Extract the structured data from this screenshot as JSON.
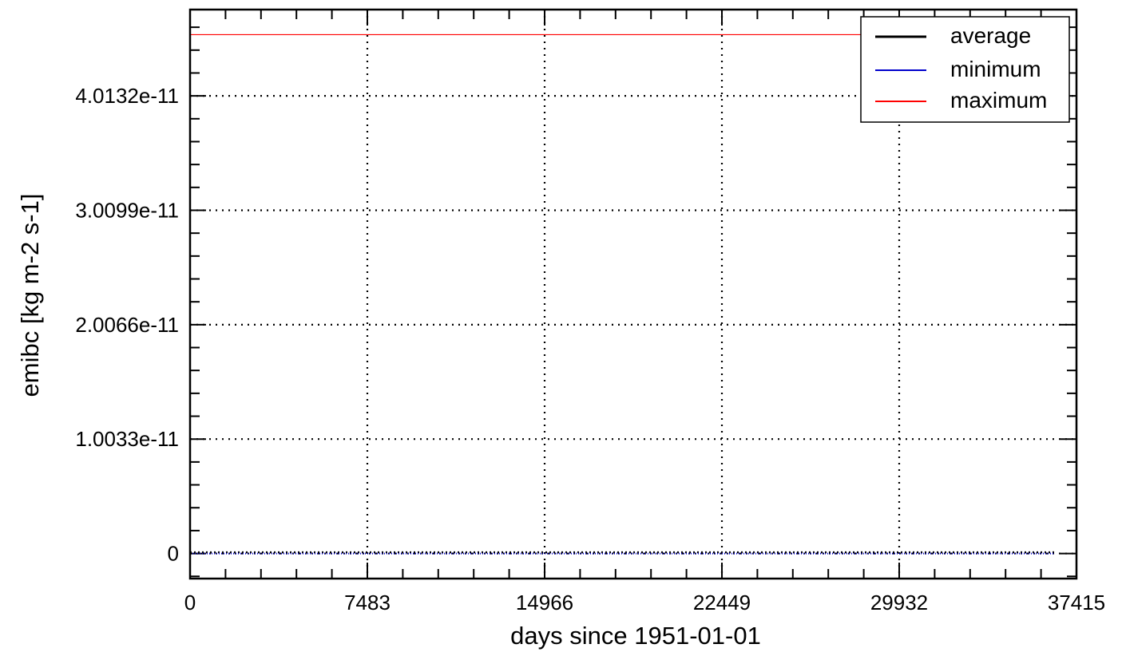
{
  "chart_data": {
    "type": "line",
    "title": "",
    "xlabel": "days since 1951-01-01",
    "ylabel": "emibc [kg m-2 s-1]",
    "xlim": [
      0,
      37415
    ],
    "ylim": [
      -2.2e-12,
      4.77e-11
    ],
    "x_ticks": [
      0,
      7483,
      14966,
      22449,
      29932,
      37415
    ],
    "x_tick_labels": [
      "0",
      "7483",
      "14966",
      "22449",
      "29932",
      "37415"
    ],
    "y_ticks": [
      0,
      1.0033e-11,
      2.0066e-11,
      3.0099e-11,
      4.0132e-11
    ],
    "y_tick_labels": [
      "0",
      "1.0033e-11",
      "2.0066e-11",
      "3.0099e-11",
      "4.0132e-11"
    ],
    "grid": true,
    "legend_position": "top-right",
    "series": [
      {
        "name": "average",
        "color": "#000000",
        "x": [
          0,
          36500
        ],
        "y": [
          1e-13,
          1e-13
        ]
      },
      {
        "name": "minimum",
        "color": "#0000cc",
        "x": [
          0,
          36500
        ],
        "y": [
          0,
          0
        ]
      },
      {
        "name": "maximum",
        "color": "#ff0000",
        "x": [
          0,
          36500
        ],
        "y": [
          4.55e-11,
          4.55e-11
        ]
      }
    ]
  }
}
